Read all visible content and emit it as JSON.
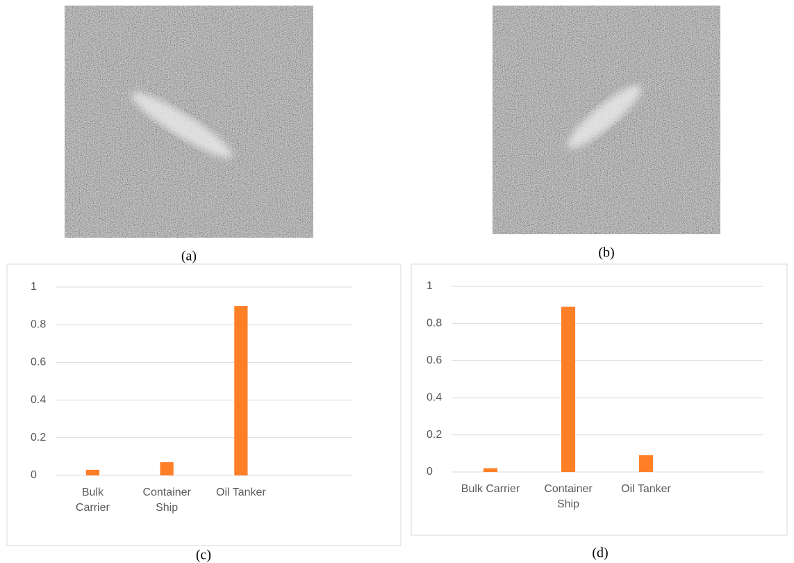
{
  "images": [
    {
      "caption": "(a)"
    },
    {
      "caption": "(b)"
    }
  ],
  "chart_data": [
    {
      "type": "bar",
      "caption": "(c)",
      "categories": [
        "Bulk Carrier",
        "Container Ship",
        "Oil Tanker",
        null
      ],
      "values": [
        0.03,
        0.07,
        0.9,
        null
      ],
      "color": "#ff7f27",
      "ylim": [
        0,
        1
      ],
      "yticks": [
        0,
        0.2,
        0.4,
        0.6,
        0.8,
        1
      ],
      "grid": true
    },
    {
      "type": "bar",
      "caption": "(d)",
      "categories": [
        "Bulk Carrier",
        "Container Ship",
        "Oil Tanker",
        null
      ],
      "values": [
        0.02,
        0.89,
        0.09,
        null
      ],
      "color": "#ff7f27",
      "ylim": [
        0,
        1
      ],
      "yticks": [
        0,
        0.2,
        0.4,
        0.6,
        0.8,
        1
      ],
      "grid": true
    }
  ]
}
